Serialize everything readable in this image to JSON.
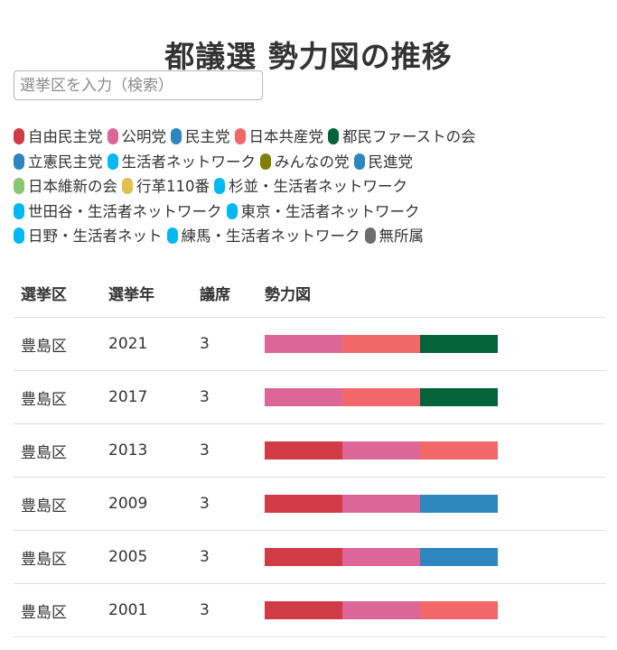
{
  "page": {
    "title": "都議選 勢力図の推移"
  },
  "search": {
    "placeholder": "選挙区を入力（検索）",
    "value": ""
  },
  "parties": [
    [
      {
        "name": "自由民主党",
        "color": "#d13b45"
      },
      {
        "name": "公明党",
        "color": "#dd6699"
      },
      {
        "name": "民主党",
        "color": "#2d86bd"
      },
      {
        "name": "日本共産党",
        "color": "#f2686a"
      },
      {
        "name": "都民ファーストの会",
        "color": "#05633a"
      }
    ],
    [
      {
        "name": "立憲民主党",
        "color": "#2d86bd"
      },
      {
        "name": "生活者ネットワーク",
        "color": "#00b9f1"
      },
      {
        "name": "みんなの党",
        "color": "#808000"
      },
      {
        "name": "民進党",
        "color": "#2d86bd"
      }
    ],
    [
      {
        "name": "日本維新の会",
        "color": "#8ac56f"
      },
      {
        "name": "行革110番",
        "color": "#e2bf4f"
      },
      {
        "name": "杉並・生活者ネットワーク",
        "color": "#00b9f1"
      }
    ],
    [
      {
        "name": "世田谷・生活者ネットワーク",
        "color": "#00b9f1"
      },
      {
        "name": "東京・生活者ネットワーク",
        "color": "#00b9f1"
      }
    ],
    [
      {
        "name": "日野・生活者ネット",
        "color": "#00b9f1"
      },
      {
        "name": "練馬・生活者ネットワーク",
        "color": "#00b9f1"
      },
      {
        "name": "無所属",
        "color": "#6e6e6e"
      }
    ]
  ],
  "table": {
    "headers": [
      "選挙区",
      "選挙年",
      "議席",
      "勢力図"
    ],
    "rows": [
      {
        "district": "豊島区",
        "year": "2021",
        "seats": "3",
        "parties": [
          "公明党",
          "日本共産党",
          "都民ファーストの会"
        ]
      },
      {
        "district": "豊島区",
        "year": "2017",
        "seats": "3",
        "parties": [
          "公明党",
          "日本共産党",
          "都民ファーストの会"
        ]
      },
      {
        "district": "豊島区",
        "year": "2013",
        "seats": "3",
        "parties": [
          "自由民主党",
          "公明党",
          "日本共産党"
        ]
      },
      {
        "district": "豊島区",
        "year": "2009",
        "seats": "3",
        "parties": [
          "自由民主党",
          "公明党",
          "民主党"
        ]
      },
      {
        "district": "豊島区",
        "year": "2005",
        "seats": "3",
        "parties": [
          "自由民主党",
          "公明党",
          "民主党"
        ]
      },
      {
        "district": "豊島区",
        "year": "2001",
        "seats": "3",
        "parties": [
          "自由民主党",
          "公明党",
          "日本共産党"
        ]
      }
    ]
  }
}
